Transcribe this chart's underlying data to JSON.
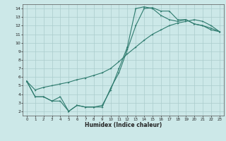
{
  "xlabel": "Humidex (Indice chaleur)",
  "bg_color": "#cce8e8",
  "grid_color": "#aacccc",
  "line_color": "#2e7b6e",
  "xlim": [
    -0.5,
    23.5
  ],
  "ylim": [
    1.5,
    14.5
  ],
  "xticks": [
    0,
    1,
    2,
    3,
    4,
    5,
    6,
    7,
    8,
    9,
    10,
    11,
    12,
    13,
    14,
    15,
    16,
    17,
    18,
    19,
    20,
    21,
    22,
    23
  ],
  "yticks": [
    2,
    3,
    4,
    5,
    6,
    7,
    8,
    9,
    10,
    11,
    12,
    13,
    14
  ],
  "line1_x": [
    0,
    1,
    2,
    3,
    4,
    5,
    6,
    7,
    8,
    9,
    10,
    11,
    12,
    13,
    14,
    15,
    16,
    17,
    18,
    19,
    20,
    21,
    22,
    23
  ],
  "line1_y": [
    5.5,
    3.7,
    3.7,
    3.2,
    3.2,
    2.0,
    2.7,
    2.5,
    2.5,
    2.5,
    4.7,
    6.5,
    9.2,
    12.0,
    14.0,
    14.1,
    13.7,
    13.7,
    12.7,
    12.7,
    12.2,
    12.0,
    11.7,
    11.3
  ],
  "line2_x": [
    0,
    1,
    2,
    3,
    4,
    5,
    6,
    7,
    8,
    9,
    10,
    11,
    12,
    13,
    14,
    15,
    16,
    17,
    18,
    19,
    20,
    21,
    22,
    23
  ],
  "line2_y": [
    5.5,
    3.7,
    3.7,
    3.2,
    3.7,
    2.0,
    2.7,
    2.5,
    2.5,
    2.7,
    4.5,
    7.0,
    9.5,
    14.0,
    14.2,
    14.0,
    13.2,
    12.7,
    12.5,
    12.7,
    12.2,
    12.0,
    11.5,
    11.3
  ],
  "line3_x": [
    0,
    1,
    2,
    3,
    4,
    5,
    6,
    7,
    8,
    9,
    10,
    11,
    12,
    13,
    14,
    15,
    16,
    17,
    18,
    19,
    20,
    21,
    22,
    23
  ],
  "line3_y": [
    5.5,
    4.5,
    4.8,
    5.0,
    5.2,
    5.4,
    5.7,
    5.9,
    6.2,
    6.5,
    7.0,
    7.8,
    8.7,
    9.5,
    10.3,
    11.0,
    11.5,
    12.0,
    12.3,
    12.5,
    12.7,
    12.5,
    12.0,
    11.3
  ]
}
